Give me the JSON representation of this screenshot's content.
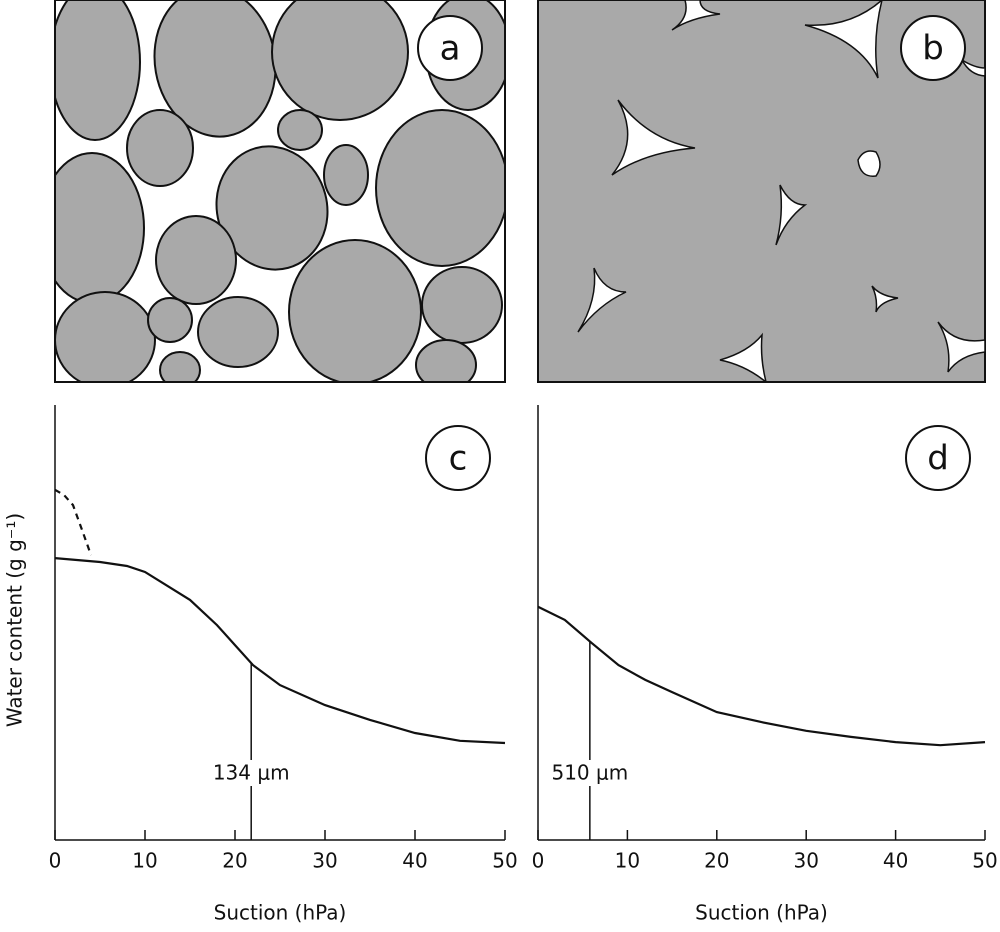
{
  "illustrations": [
    {
      "label": "a"
    },
    {
      "label": "b"
    }
  ],
  "chart_data": [
    {
      "type": "line",
      "label": "c",
      "x_label": "Suction (hPa)",
      "y_label": "Water content   (g g⁻¹)",
      "xlim": [
        0,
        50
      ],
      "xticks": [
        0,
        10,
        20,
        30,
        40,
        50
      ],
      "ylim": [
        0,
        1
      ],
      "series": [
        {
          "color": "#111111",
          "dash": false,
          "x": [
            0,
            5,
            8,
            10,
            15,
            18,
            20,
            22,
            25,
            30,
            35,
            40,
            45,
            50
          ],
          "values": [
            0.648,
            0.639,
            0.63,
            0.616,
            0.552,
            0.494,
            0.448,
            0.402,
            0.356,
            0.31,
            0.276,
            0.246,
            0.228,
            0.223
          ]
        },
        {
          "color": "#111111",
          "dash": true,
          "x": [
            0,
            1,
            2,
            3,
            4
          ],
          "values": [
            0.805,
            0.793,
            0.77,
            0.713,
            0.655
          ]
        }
      ],
      "annotations": [
        {
          "text": "134 μm",
          "x": 21.8
        }
      ]
    },
    {
      "type": "line",
      "label": "d",
      "x_label": "Suction (hPa)",
      "xlim": [
        0,
        50
      ],
      "xticks": [
        0,
        10,
        20,
        30,
        40,
        50
      ],
      "ylim": [
        0,
        1
      ],
      "series": [
        {
          "color": "#111111",
          "dash": false,
          "x": [
            0,
            3,
            6,
            9,
            12,
            15,
            20,
            25,
            30,
            35,
            40,
            45,
            50
          ],
          "values": [
            0.536,
            0.506,
            0.453,
            0.402,
            0.368,
            0.34,
            0.294,
            0.271,
            0.251,
            0.237,
            0.225,
            0.218,
            0.225
          ]
        }
      ],
      "annotations": [
        {
          "text": "510 μm",
          "x": 5.8
        }
      ]
    }
  ]
}
